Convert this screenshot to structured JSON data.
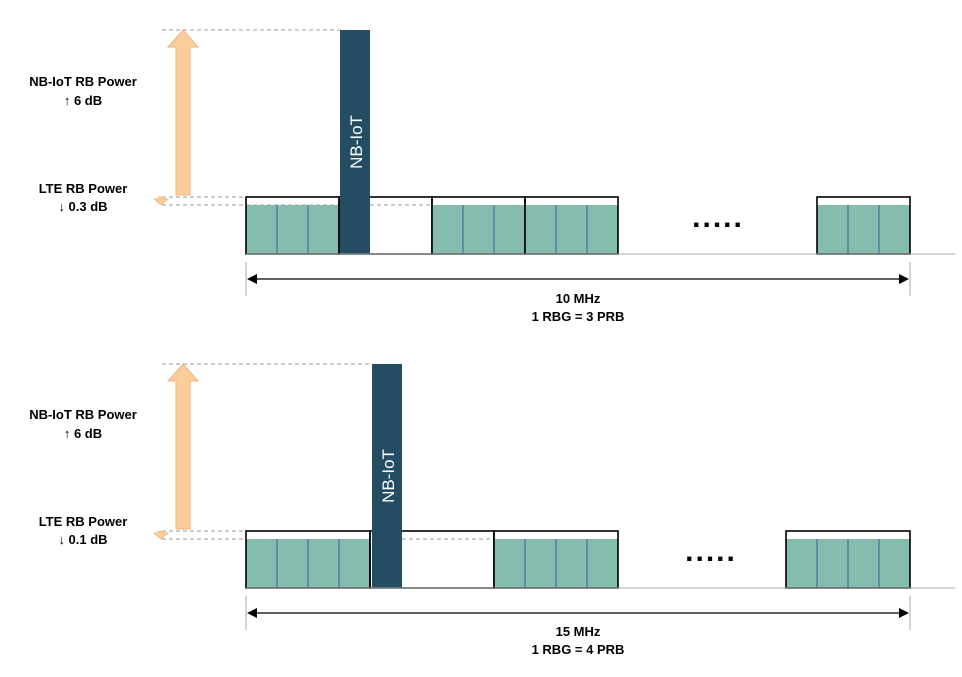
{
  "colors": {
    "prb_fill": "#84bcae",
    "prb_divider": "#3e5f99",
    "nbiot_fill": "#244c62",
    "arrow_fill": "#fbcd9a",
    "arrow_stroke": "#f0b57a",
    "guide_line": "#9a9a9a"
  },
  "panels": [
    {
      "nb_label_1": "NB-IoT RB Power",
      "nb_label_2": "↑ 6 dB",
      "lte_label_1": "LTE RB Power",
      "lte_label_2": "↓ 0.3 dB",
      "nbiot_text": "NB-IoT",
      "dots": ".....",
      "bandwidth": "10 MHz",
      "rbg": "1 RBG = 3 PRB"
    },
    {
      "nb_label_1": "NB-IoT RB Power",
      "nb_label_2": "↑ 6 dB",
      "lte_label_1": "LTE RB Power",
      "lte_label_2": "↓ 0.1 dB",
      "nbiot_text": "NB-IoT",
      "dots": ".....",
      "bandwidth": "15 MHz",
      "rbg": "1 RBG = 4 PRB"
    }
  ]
}
